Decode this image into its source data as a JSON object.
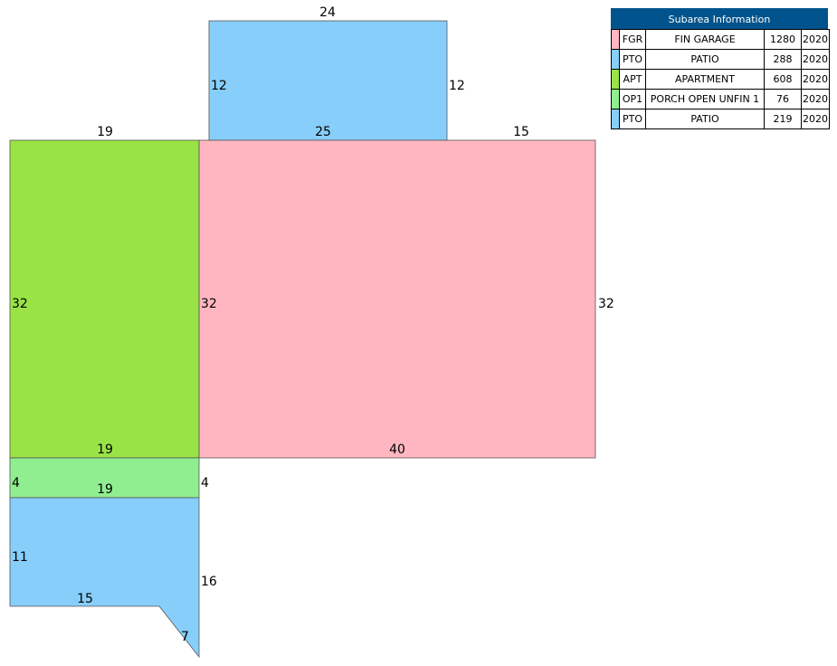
{
  "legend": {
    "title": "Subarea Information",
    "rows": [
      {
        "code": "FGR",
        "description": "FIN GARAGE",
        "area": "1280",
        "year": "2020",
        "color": "#ffb6c1"
      },
      {
        "code": "PTO",
        "description": "PATIO",
        "area": "288",
        "year": "2020",
        "color": "#87cefa"
      },
      {
        "code": "APT",
        "description": "APARTMENT",
        "area": "608",
        "year": "2020",
        "color": "#99e346"
      },
      {
        "code": "OP1",
        "description": "PORCH OPEN UNFIN 1",
        "area": "76",
        "year": "2020",
        "color": "#90ee90"
      },
      {
        "code": "PTO",
        "description": "PATIO",
        "area": "219",
        "year": "2020",
        "color": "#87cefa"
      }
    ]
  },
  "subareas": [
    {
      "code": "PTO",
      "color": "#87cefa",
      "dimensions": [
        "24",
        "12",
        "12",
        "25"
      ]
    },
    {
      "code": "FGR",
      "color": "#ffb6c1",
      "dimensions": [
        "15",
        "32",
        "32",
        "40"
      ]
    },
    {
      "code": "APT",
      "color": "#99e346",
      "dimensions": [
        "19",
        "32",
        "19"
      ]
    },
    {
      "code": "OP1",
      "color": "#90ee90",
      "dimensions": [
        "4",
        "4",
        "19"
      ]
    },
    {
      "code": "PTO",
      "color": "#87cefa",
      "dimensions": [
        "11",
        "16",
        "15",
        "7"
      ]
    }
  ]
}
